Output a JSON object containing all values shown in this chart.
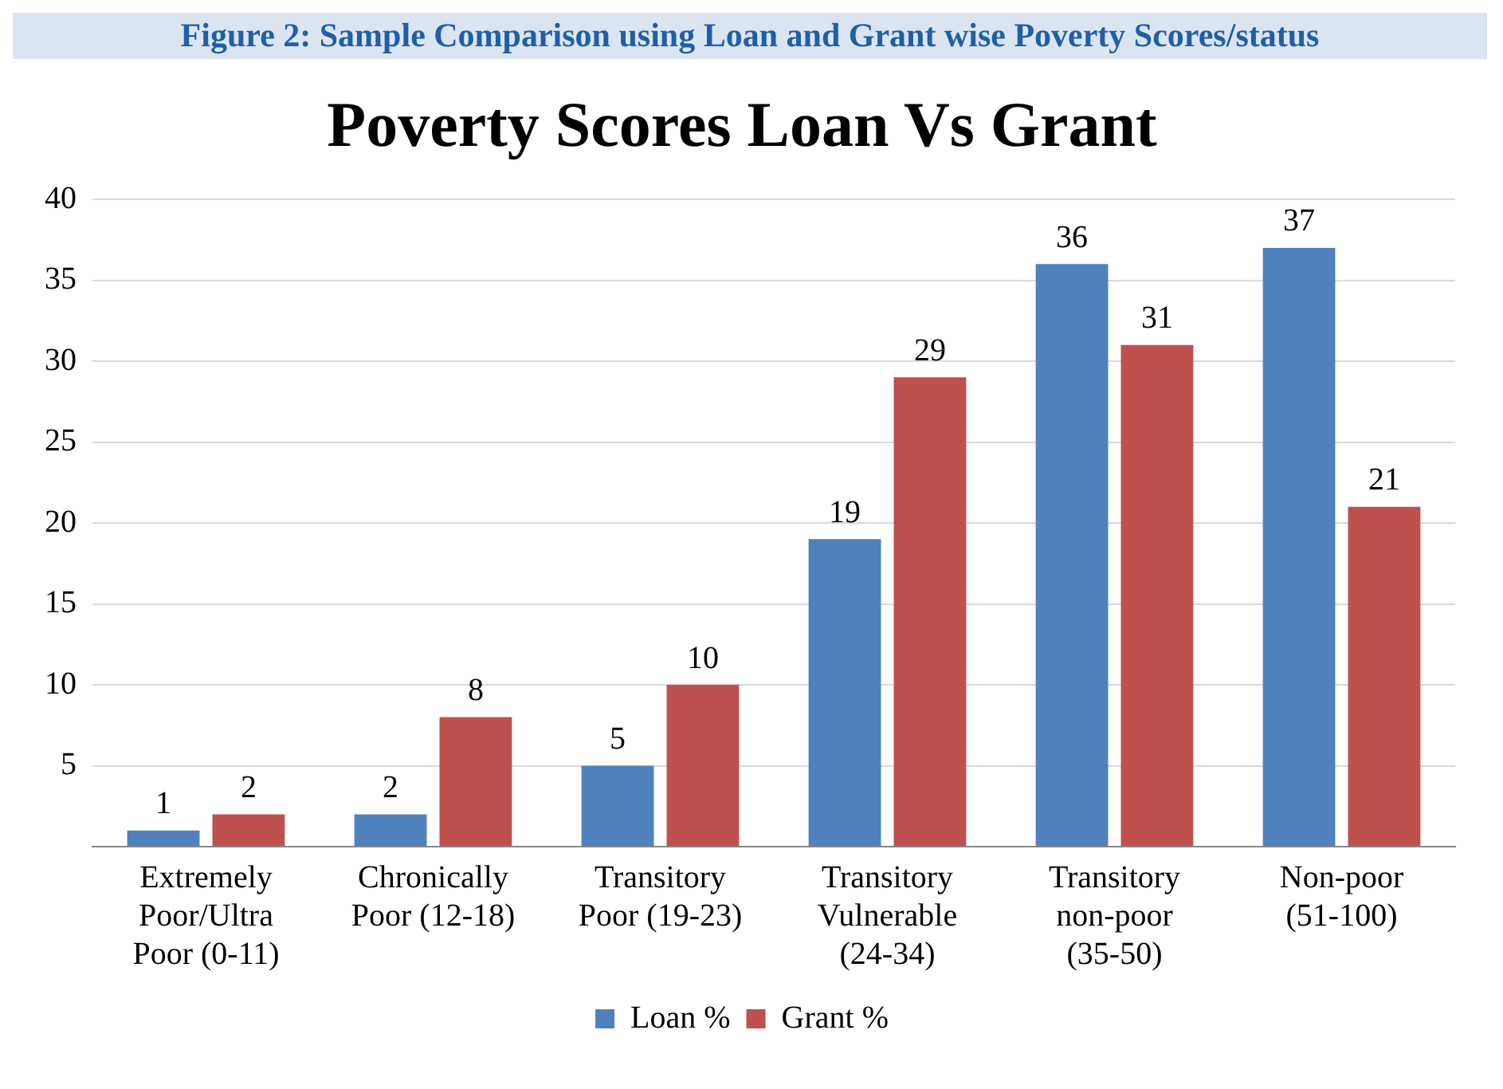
{
  "chart_data": {
    "type": "bar",
    "title": "Poverty Scores Loan Vs Grant",
    "annotations": [
      "Figure 2: Sample Comparison using Loan and Grant wise Poverty Scores/status"
    ],
    "categories": [
      "Extremely Poor/Ultra Poor (0-11)",
      "Chronically Poor (12-18)",
      "Transitory Poor (19-23)",
      "Transitory Vulnerable (24-34)",
      "Transitory non-poor (35-50)",
      "Non-poor (51-100)"
    ],
    "series": [
      {
        "name": "Loan %",
        "color": "#4f81bd",
        "values": [
          1,
          2,
          5,
          19,
          36,
          37
        ]
      },
      {
        "name": "Grant %",
        "color": "#c0504d",
        "values": [
          2,
          8,
          10,
          29,
          31,
          21
        ]
      }
    ],
    "ylim": [
      0,
      40
    ],
    "yticks": [
      {
        "value": 0,
        "label": null
      },
      5,
      10,
      15,
      20,
      25,
      30,
      35,
      40
    ],
    "grid": "y",
    "legend": "bottom",
    "data_labels": true
  }
}
